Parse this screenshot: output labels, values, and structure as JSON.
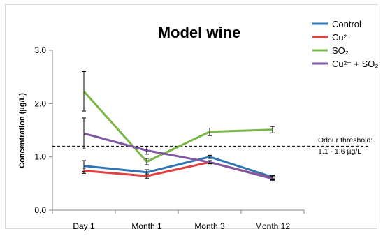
{
  "chart_data": {
    "type": "line",
    "title": "Model wine",
    "xlabel": "",
    "ylabel": "Concentration (µg/L)",
    "categories": [
      "Day 1",
      "Month 1",
      "Month 3",
      "Month 12"
    ],
    "ylim": [
      0.0,
      3.0
    ],
    "yticks": [
      "0.0",
      "1.0",
      "2.0",
      "3.0"
    ],
    "grid": false,
    "legend_position": "top-right",
    "series": [
      {
        "name": "Control",
        "color": "#2e75b6",
        "values": [
          0.83,
          0.71,
          1.0,
          0.62
        ],
        "errors": [
          0.1,
          0.05,
          0.03,
          0.03
        ]
      },
      {
        "name": "Cu²⁺",
        "color": "#e04040",
        "values": [
          0.74,
          0.64,
          0.9,
          0.6
        ],
        "errors": [
          0.05,
          0.04,
          0.03,
          0.03
        ]
      },
      {
        "name": "SO₂",
        "color": "#7ab648",
        "values": [
          2.23,
          0.91,
          1.47,
          1.51
        ],
        "errors": [
          0.37,
          0.06,
          0.07,
          0.06
        ]
      },
      {
        "name": "Cu²⁺ + SO₂",
        "color": "#7f5aa2",
        "values": [
          1.44,
          1.12,
          0.9,
          0.59
        ],
        "errors": [
          0.29,
          0.07,
          0.03,
          0.03
        ]
      }
    ],
    "threshold": {
      "value": 1.2,
      "label_line1": "Odour threshold:",
      "label_line2": "1.1 - 1.6 µg/L"
    }
  }
}
